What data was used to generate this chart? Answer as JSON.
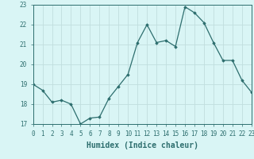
{
  "x": [
    0,
    1,
    2,
    3,
    4,
    5,
    6,
    7,
    8,
    9,
    10,
    11,
    12,
    13,
    14,
    15,
    16,
    17,
    18,
    19,
    20,
    21,
    22,
    23
  ],
  "y": [
    19.0,
    18.7,
    18.1,
    18.2,
    18.0,
    17.0,
    17.3,
    17.35,
    18.3,
    18.9,
    19.5,
    21.1,
    22.0,
    21.1,
    21.2,
    20.9,
    22.9,
    22.6,
    22.1,
    21.1,
    20.2,
    20.2,
    19.2,
    18.6
  ],
  "line_color": "#2d6e6e",
  "marker": "D",
  "marker_size": 1.8,
  "bg_color": "#d9f5f5",
  "grid_color": "#c0dede",
  "xlabel": "Humidex (Indice chaleur)",
  "ylim": [
    17,
    23
  ],
  "xlim": [
    0,
    23
  ],
  "yticks": [
    17,
    18,
    19,
    20,
    21,
    22,
    23
  ],
  "xticks": [
    0,
    1,
    2,
    3,
    4,
    5,
    6,
    7,
    8,
    9,
    10,
    11,
    12,
    13,
    14,
    15,
    16,
    17,
    18,
    19,
    20,
    21,
    22,
    23
  ],
  "tick_fontsize": 5.5,
  "xlabel_fontsize": 7.0
}
